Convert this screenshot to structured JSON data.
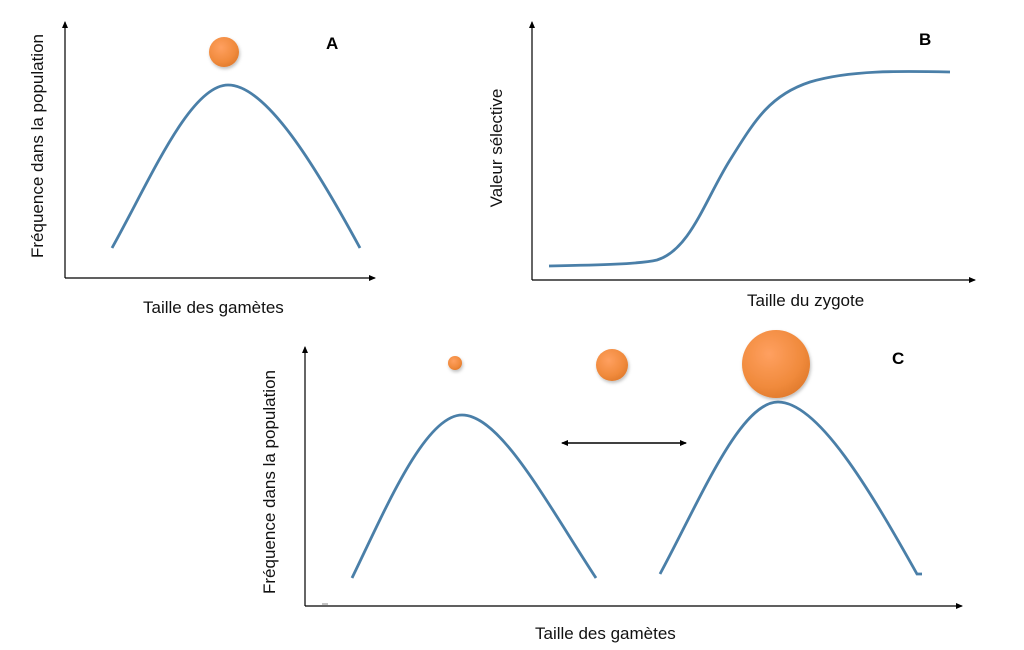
{
  "panels": {
    "a": {
      "letter": "A",
      "xlabel": "Taille des gamètes",
      "ylabel": "Fréquence dans la population"
    },
    "b": {
      "letter": "B",
      "xlabel": "Taille du zygote",
      "ylabel": "Valeur sélective"
    },
    "c": {
      "letter": "C",
      "xlabel": "Taille des gamètes",
      "ylabel": "Fréquence dans la population"
    }
  },
  "colors": {
    "curve": "#4a7fa8",
    "gamete": "#f08a3c",
    "axis": "#000000"
  }
}
